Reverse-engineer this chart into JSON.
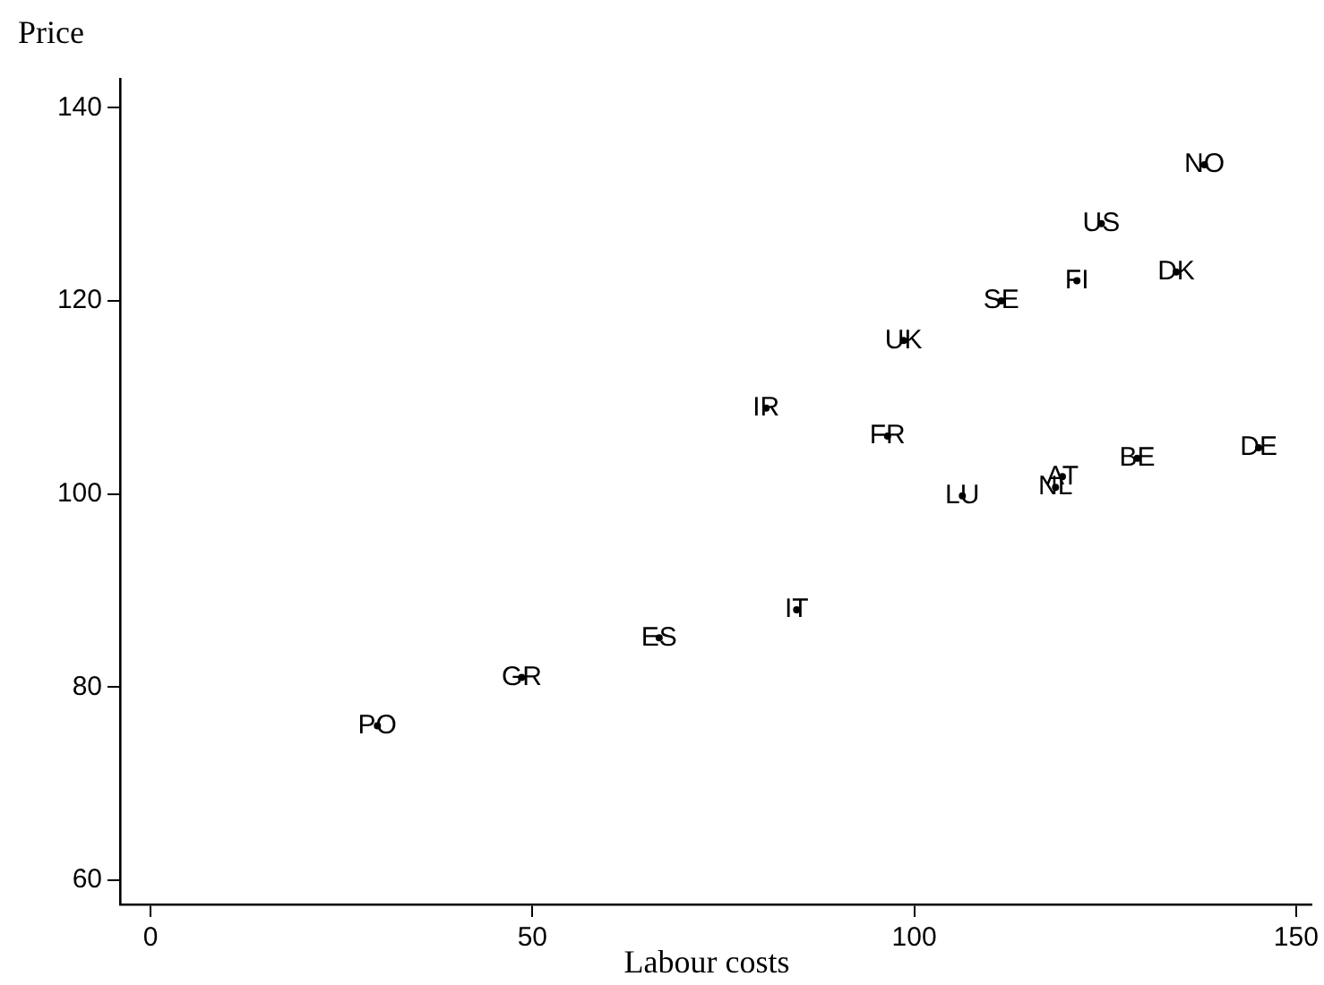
{
  "chart_data": {
    "type": "scatter",
    "xlabel": "Labour costs",
    "ylabel": "Price",
    "marker": "circle",
    "grid": false,
    "legend": false,
    "xlim": [
      -4,
      152
    ],
    "xticks": [
      0,
      50,
      100,
      150
    ],
    "ylim": [
      57.5,
      143
    ],
    "yticks": [
      60,
      80,
      100,
      120,
      140
    ],
    "series": [
      {
        "color": "#000000",
        "x": [
          138,
          124.5,
          121.3,
          134.3,
          111.4,
          98.6,
          80.6,
          96.5,
          106.3,
          119.4,
          118.5,
          129.2,
          145.1,
          84.6,
          66.6,
          48.6,
          29.7
        ],
        "values": [
          134.1,
          128,
          122.1,
          123,
          120,
          115.9,
          108.9,
          106,
          99.8,
          101.8,
          100.7,
          103.7,
          104.8,
          88,
          85.1,
          81,
          76
        ],
        "value_labels": [
          "NO",
          "US",
          "FI",
          "DK",
          "SE",
          "UK",
          "IR",
          "FR",
          "LU",
          "AT",
          "NL",
          "BE",
          "DE",
          "IT",
          "ES",
          "GR",
          "PO"
        ]
      }
    ]
  }
}
